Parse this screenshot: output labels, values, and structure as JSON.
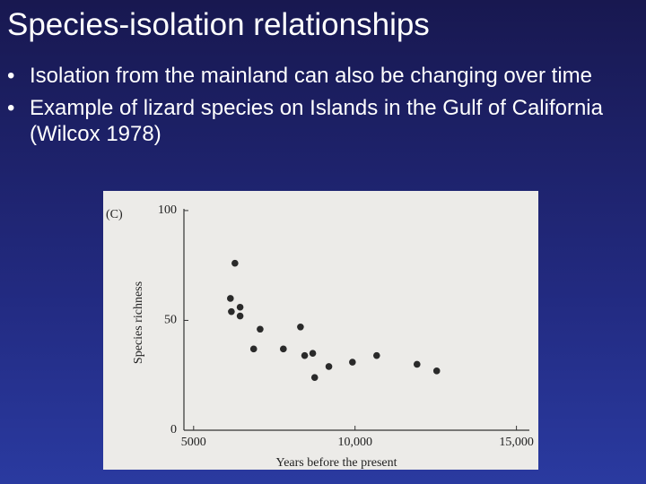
{
  "slide": {
    "title": "Species-isolation relationships",
    "bullets": [
      "Isolation from the mainland can also be changing over time",
      "Example of lizard species on Islands in the Gulf of California (Wilcox 1978)"
    ]
  },
  "chart_data": {
    "type": "scatter",
    "panel_label": "(C)",
    "xlabel": "Years before the present",
    "ylabel": "Species richness",
    "x": [
      6280,
      6140,
      6440,
      6170,
      6440,
      7060,
      6860,
      7780,
      8310,
      8440,
      8690,
      8750,
      9190,
      9920,
      10670,
      11920,
      12530
    ],
    "values": [
      76,
      60,
      56,
      54,
      52,
      46,
      37,
      37,
      47,
      34,
      35,
      24,
      29,
      31,
      34,
      30,
      27
    ],
    "color": "#2a2a2a",
    "xlim": [
      4700,
      15400
    ],
    "xticks": [
      5000,
      {
        "value": 10000,
        "label": "10,000"
      },
      {
        "value": 15000,
        "label": "15,000"
      }
    ],
    "ylim": [
      0,
      102
    ],
    "yticks": [
      0,
      50,
      100
    ]
  }
}
